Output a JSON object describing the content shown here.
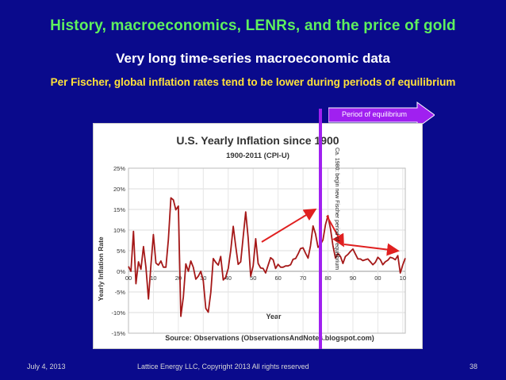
{
  "slide": {
    "title": "History, macroeconomics, LENRs, and the price of gold",
    "subtitle": "Very long time-series macroeconomic data",
    "caption": "Per Fischer, global inflation rates tend to be lower during periods of equilibrium",
    "equilibrium_tag": "Period of equilibrium",
    "annotation": "Ca. 1980: begin new Fischer period of equilibrium",
    "colors": {
      "background": "#0a0a8c",
      "title": "#5ef05e",
      "caption": "#ffe23a",
      "marker": "#a020f0",
      "trend": "#e02020",
      "tag": "#a020f0"
    }
  },
  "footer": {
    "date": "July 4, 2013",
    "copyright": "Lattice Energy LLC, Copyright 2013   All rights reserved",
    "page": "38"
  },
  "chart_data": {
    "type": "line",
    "title": "U.S. Yearly Inflation since 1900",
    "subtitle": "1900-2011 (CPI-U)",
    "xlabel": "Year",
    "ylabel": "Yearly Inflation Rate",
    "source": "Source: Observations (ObservationsAndNotes.blogspot.com)",
    "x_tick_labels": [
      "00",
      "10",
      "20",
      "30",
      "40",
      "50",
      "60",
      "70",
      "80",
      "90",
      "00",
      "10"
    ],
    "y_tick_labels": [
      "25%",
      "20%",
      "15%",
      "10%",
      "5%",
      "0%",
      "-5%",
      "-10%",
      "-15%"
    ],
    "y_ticks": [
      25,
      20,
      15,
      10,
      5,
      0,
      -5,
      -10,
      -15
    ],
    "xlim": [
      1900,
      2011
    ],
    "ylim": [
      -15,
      25
    ],
    "grid": true,
    "series": [
      {
        "color": "#a51818",
        "x": [
          1900,
          1901,
          1902,
          1903,
          1904,
          1905,
          1906,
          1907,
          1908,
          1909,
          1910,
          1911,
          1912,
          1913,
          1914,
          1915,
          1916,
          1917,
          1918,
          1919,
          1920,
          1921,
          1922,
          1923,
          1924,
          1925,
          1926,
          1927,
          1928,
          1929,
          1930,
          1931,
          1932,
          1933,
          1934,
          1935,
          1936,
          1937,
          1938,
          1939,
          1940,
          1941,
          1942,
          1943,
          1944,
          1945,
          1946,
          1947,
          1948,
          1949,
          1950,
          1951,
          1952,
          1953,
          1954,
          1955,
          1956,
          1957,
          1958,
          1959,
          1960,
          1961,
          1962,
          1963,
          1964,
          1965,
          1966,
          1967,
          1968,
          1969,
          1970,
          1971,
          1972,
          1973,
          1974,
          1975,
          1976,
          1977,
          1978,
          1979,
          1980,
          1981,
          1982,
          1983,
          1984,
          1985,
          1986,
          1987,
          1988,
          1989,
          1990,
          1991,
          1992,
          1993,
          1994,
          1995,
          1996,
          1997,
          1998,
          1999,
          2000,
          2001,
          2002,
          2003,
          2004,
          2005,
          2006,
          2007,
          2008,
          2009,
          2010,
          2011
        ],
        "y": [
          1.2,
          0.0,
          9.7,
          -3.0,
          2.3,
          0.5,
          6.0,
          1.0,
          -6.7,
          1.5,
          8.9,
          2.0,
          1.5,
          2.5,
          1.0,
          1.0,
          7.7,
          17.8,
          17.3,
          14.9,
          15.8,
          -10.9,
          -6.2,
          1.8,
          0.0,
          2.5,
          1.0,
          -1.9,
          -1.2,
          0.0,
          -2.3,
          -9.0,
          -9.9,
          -5.1,
          3.1,
          2.2,
          1.5,
          3.6,
          -2.1,
          -1.4,
          0.7,
          5.0,
          10.9,
          6.1,
          1.7,
          2.3,
          8.3,
          14.4,
          8.1,
          -1.2,
          1.3,
          7.9,
          1.9,
          0.8,
          0.7,
          -0.4,
          1.5,
          3.3,
          2.8,
          0.7,
          1.7,
          1.0,
          1.0,
          1.3,
          1.3,
          1.6,
          2.9,
          3.1,
          4.2,
          5.5,
          5.7,
          4.4,
          3.2,
          6.2,
          11.0,
          9.1,
          5.8,
          6.5,
          7.6,
          11.3,
          13.5,
          10.3,
          6.2,
          3.2,
          4.3,
          3.6,
          1.9,
          3.6,
          4.1,
          4.8,
          5.4,
          4.2,
          3.0,
          3.0,
          2.6,
          2.8,
          3.0,
          2.3,
          1.6,
          2.2,
          3.4,
          2.8,
          1.6,
          2.3,
          2.7,
          3.4,
          3.2,
          2.8,
          3.8,
          -0.4,
          1.6,
          3.2
        ]
      }
    ]
  }
}
